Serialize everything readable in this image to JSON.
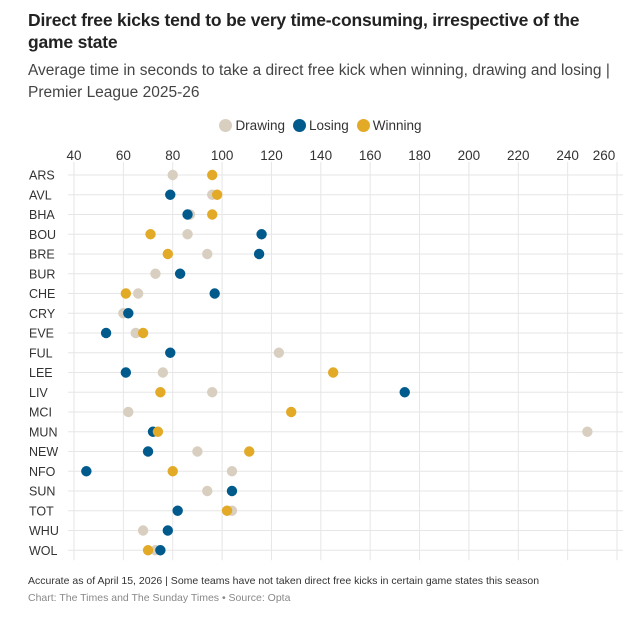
{
  "header": {
    "title": "Direct free kicks tend to be very time-consuming, irrespective of the game state",
    "subtitle": "Average time in seconds to take a direct free kick when winning, drawing and losing | Premier League 2025-26"
  },
  "footer": {
    "note": "Accurate as of April 15, 2026 | Some teams have not taken direct free kicks in certain game states this season",
    "source": "Chart: The Times and The Sunday Times • Source: Opta"
  },
  "colors": {
    "Drawing": "#d9cfc1",
    "Losing": "#005a8c",
    "Winning": "#e2aa27",
    "grid": "#e6e6e6"
  },
  "chart_data": {
    "type": "scatter",
    "subtype": "dot-plot",
    "title": "Direct free kicks tend to be very time-consuming, irrespective of the game state",
    "subtitle": "Average time in seconds to take a direct free kick when winning, drawing and losing | Premier League 2025-26",
    "xlabel": "",
    "ylabel": "",
    "xlim": [
      40,
      260
    ],
    "xticks": [
      40,
      60,
      80,
      100,
      120,
      140,
      160,
      180,
      200,
      220,
      240,
      260
    ],
    "x_axis_position": "top",
    "grid": true,
    "legend": {
      "position": "top-center",
      "entries": [
        "Drawing",
        "Losing",
        "Winning"
      ]
    },
    "categories": [
      "ARS",
      "AVL",
      "BHA",
      "BOU",
      "BRE",
      "BUR",
      "CHE",
      "CRY",
      "EVE",
      "FUL",
      "LEE",
      "LIV",
      "MCI",
      "MUN",
      "NEW",
      "NFO",
      "SUN",
      "TOT",
      "WHU",
      "WOL"
    ],
    "series": [
      {
        "name": "Drawing",
        "values": [
          80,
          96,
          87,
          86,
          94,
          73,
          66,
          60,
          65,
          123,
          76,
          96,
          62,
          248,
          90,
          104,
          94,
          104,
          68,
          73
        ]
      },
      {
        "name": "Losing",
        "values": [
          null,
          79,
          86,
          116,
          115,
          83,
          97,
          62,
          53,
          79,
          61,
          174,
          null,
          72,
          70,
          45,
          104,
          82,
          78,
          75
        ]
      },
      {
        "name": "Winning",
        "values": [
          96,
          98,
          96,
          71,
          78,
          null,
          61,
          null,
          68,
          null,
          145,
          75,
          128,
          74,
          111,
          80,
          null,
          102,
          null,
          70
        ]
      }
    ]
  }
}
